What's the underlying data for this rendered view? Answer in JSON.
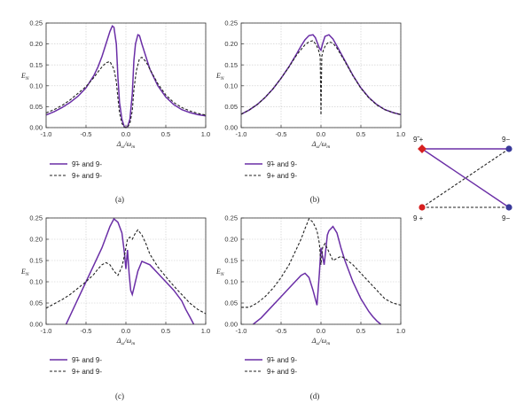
{
  "chart_data": [
    {
      "type": "line",
      "caption": "(a)",
      "xlabel": "Δ_ω/ω_m",
      "ylabel": "E_N",
      "xlim": [
        -1.0,
        1.0
      ],
      "ylim": [
        0.0,
        0.25
      ],
      "xticks": [
        "-1.0",
        "-0.5",
        "0.0",
        "0.5",
        "1.0"
      ],
      "yticks": [
        "0.00",
        "0.05",
        "0.10",
        "0.15",
        "0.20",
        "0.25"
      ],
      "grid": true,
      "legend_position": "bottom",
      "series": [
        {
          "name": "9̃+ and 9-",
          "style": "solid",
          "color": "#6a2ea6",
          "x": [
            -1.0,
            -0.9,
            -0.8,
            -0.7,
            -0.6,
            -0.5,
            -0.4,
            -0.35,
            -0.3,
            -0.25,
            -0.2,
            -0.17,
            -0.15,
            -0.12,
            -0.1,
            -0.08,
            -0.05,
            -0.02,
            0.0,
            0.02,
            0.05,
            0.08,
            0.1,
            0.12,
            0.15,
            0.17,
            0.2,
            0.25,
            0.3,
            0.4,
            0.5,
            0.6,
            0.7,
            0.8,
            0.9,
            1.0
          ],
          "y": [
            0.03,
            0.038,
            0.048,
            0.06,
            0.075,
            0.095,
            0.125,
            0.145,
            0.17,
            0.2,
            0.23,
            0.243,
            0.24,
            0.2,
            0.12,
            0.06,
            0.02,
            0.002,
            0.0,
            0.002,
            0.02,
            0.08,
            0.16,
            0.2,
            0.222,
            0.22,
            0.2,
            0.17,
            0.14,
            0.1,
            0.073,
            0.055,
            0.043,
            0.036,
            0.031,
            0.028
          ]
        },
        {
          "name": "9+ and 9-",
          "style": "dashed",
          "color": "#222222",
          "x": [
            -1.0,
            -0.9,
            -0.8,
            -0.7,
            -0.6,
            -0.5,
            -0.4,
            -0.35,
            -0.3,
            -0.25,
            -0.2,
            -0.15,
            -0.12,
            -0.1,
            -0.08,
            -0.05,
            -0.02,
            0.0,
            0.02,
            0.05,
            0.08,
            0.1,
            0.13,
            0.17,
            0.2,
            0.25,
            0.3,
            0.4,
            0.5,
            0.6,
            0.7,
            0.8,
            0.9,
            1.0
          ],
          "y": [
            0.035,
            0.043,
            0.053,
            0.066,
            0.082,
            0.098,
            0.12,
            0.133,
            0.145,
            0.155,
            0.158,
            0.14,
            0.11,
            0.07,
            0.035,
            0.01,
            0.001,
            0.0,
            0.001,
            0.01,
            0.04,
            0.09,
            0.135,
            0.165,
            0.168,
            0.158,
            0.14,
            0.105,
            0.078,
            0.06,
            0.048,
            0.04,
            0.034,
            0.03
          ]
        }
      ]
    },
    {
      "type": "line",
      "caption": "(b)",
      "xlabel": "Δ_ω/ω_m",
      "ylabel": "E_N",
      "xlim": [
        -1.0,
        1.0
      ],
      "ylim": [
        0.0,
        0.25
      ],
      "xticks": [
        "-1.0",
        "-0.5",
        "0.0",
        "0.5",
        "1.0"
      ],
      "yticks": [
        "0.00",
        "0.05",
        "0.10",
        "0.15",
        "0.20",
        "0.25"
      ],
      "grid": true,
      "legend_position": "bottom",
      "series": [
        {
          "name": "9̃+ and 9-",
          "style": "solid",
          "color": "#6a2ea6",
          "x": [
            -1.0,
            -0.9,
            -0.8,
            -0.7,
            -0.6,
            -0.5,
            -0.4,
            -0.3,
            -0.25,
            -0.2,
            -0.15,
            -0.1,
            -0.07,
            -0.04,
            -0.02,
            0.0,
            0.02,
            0.05,
            0.1,
            0.15,
            0.2,
            0.3,
            0.4,
            0.5,
            0.6,
            0.7,
            0.8,
            0.9,
            1.0
          ],
          "y": [
            0.032,
            0.042,
            0.055,
            0.072,
            0.093,
            0.118,
            0.146,
            0.178,
            0.195,
            0.21,
            0.22,
            0.222,
            0.215,
            0.2,
            0.19,
            0.185,
            0.2,
            0.218,
            0.222,
            0.212,
            0.195,
            0.16,
            0.125,
            0.095,
            0.072,
            0.055,
            0.043,
            0.036,
            0.031
          ]
        },
        {
          "name": "9+ and 9-",
          "style": "dashed",
          "color": "#222222",
          "x": [
            -1.0,
            -0.9,
            -0.8,
            -0.7,
            -0.6,
            -0.5,
            -0.4,
            -0.3,
            -0.2,
            -0.15,
            -0.1,
            -0.06,
            -0.03,
            -0.01,
            0.0,
            0.01,
            0.03,
            0.06,
            0.1,
            0.15,
            0.2,
            0.3,
            0.4,
            0.5,
            0.6,
            0.7,
            0.8,
            0.9,
            1.0
          ],
          "y": [
            0.032,
            0.042,
            0.055,
            0.072,
            0.093,
            0.118,
            0.145,
            0.175,
            0.198,
            0.205,
            0.208,
            0.198,
            0.185,
            0.17,
            0.03,
            0.17,
            0.185,
            0.198,
            0.205,
            0.202,
            0.19,
            0.158,
            0.124,
            0.094,
            0.071,
            0.054,
            0.043,
            0.036,
            0.031
          ]
        }
      ]
    },
    {
      "type": "line",
      "caption": "(c)",
      "xlabel": "Δ_ω/ω_m",
      "ylabel": "E_N",
      "xlim": [
        -1.0,
        1.0
      ],
      "ylim": [
        0.0,
        0.25
      ],
      "xticks": [
        "-1.0",
        "-0.5",
        "0.0",
        "0.5",
        "1.0"
      ],
      "yticks": [
        "0.00",
        "0.05",
        "0.10",
        "0.15",
        "0.20",
        "0.25"
      ],
      "grid": true,
      "legend_position": "bottom",
      "series": [
        {
          "name": "9̃+ and 9-",
          "style": "solid",
          "color": "#6a2ea6",
          "x": [
            -0.75,
            -0.7,
            -0.6,
            -0.5,
            -0.4,
            -0.3,
            -0.25,
            -0.2,
            -0.15,
            -0.1,
            -0.05,
            -0.02,
            0.0,
            0.02,
            0.04,
            0.06,
            0.08,
            0.1,
            0.15,
            0.2,
            0.3,
            0.4,
            0.5,
            0.6,
            0.7,
            0.75,
            0.8,
            0.85
          ],
          "y": [
            0.0,
            0.02,
            0.06,
            0.1,
            0.14,
            0.18,
            0.205,
            0.23,
            0.248,
            0.24,
            0.215,
            0.17,
            0.13,
            0.175,
            0.12,
            0.08,
            0.07,
            0.085,
            0.125,
            0.148,
            0.14,
            0.12,
            0.1,
            0.08,
            0.055,
            0.035,
            0.018,
            0.0
          ]
        },
        {
          "name": "9+ and 9-",
          "style": "dashed",
          "color": "#222222",
          "x": [
            -1.0,
            -0.9,
            -0.8,
            -0.7,
            -0.6,
            -0.5,
            -0.4,
            -0.35,
            -0.3,
            -0.25,
            -0.2,
            -0.15,
            -0.1,
            -0.05,
            -0.02,
            0.0,
            0.02,
            0.05,
            0.08,
            0.12,
            0.15,
            0.2,
            0.25,
            0.3,
            0.4,
            0.5,
            0.6,
            0.7,
            0.8,
            0.9,
            1.0
          ],
          "y": [
            0.038,
            0.048,
            0.058,
            0.07,
            0.085,
            0.1,
            0.118,
            0.13,
            0.14,
            0.145,
            0.14,
            0.125,
            0.115,
            0.135,
            0.16,
            0.18,
            0.2,
            0.205,
            0.2,
            0.215,
            0.222,
            0.21,
            0.19,
            0.165,
            0.135,
            0.112,
            0.09,
            0.07,
            0.05,
            0.035,
            0.025
          ]
        }
      ]
    },
    {
      "type": "line",
      "caption": "(d)",
      "xlabel": "Δ_ω/ω_m",
      "ylabel": "E_N",
      "xlim": [
        -1.0,
        1.0
      ],
      "ylim": [
        0.0,
        0.25
      ],
      "xticks": [
        "-1.0",
        "-0.5",
        "0.0",
        "0.5",
        "1.0"
      ],
      "yticks": [
        "0.00",
        "0.05",
        "0.10",
        "0.15",
        "0.20",
        "0.25"
      ],
      "grid": true,
      "legend_position": "bottom",
      "series": [
        {
          "name": "9̃+ and 9-",
          "style": "solid",
          "color": "#6a2ea6",
          "x": [
            -0.85,
            -0.75,
            -0.65,
            -0.55,
            -0.45,
            -0.35,
            -0.25,
            -0.2,
            -0.15,
            -0.1,
            -0.05,
            -0.02,
            0.0,
            0.02,
            0.04,
            0.06,
            0.08,
            0.1,
            0.15,
            0.2,
            0.25,
            0.3,
            0.4,
            0.5,
            0.6,
            0.65,
            0.7,
            0.75
          ],
          "y": [
            0.0,
            0.015,
            0.035,
            0.055,
            0.075,
            0.095,
            0.115,
            0.12,
            0.11,
            0.08,
            0.045,
            0.12,
            0.18,
            0.16,
            0.14,
            0.175,
            0.21,
            0.22,
            0.23,
            0.215,
            0.18,
            0.15,
            0.1,
            0.06,
            0.03,
            0.018,
            0.008,
            0.0
          ]
        },
        {
          "name": "9+ and 9-",
          "style": "dashed",
          "color": "#222222",
          "x": [
            -1.0,
            -0.9,
            -0.8,
            -0.7,
            -0.6,
            -0.5,
            -0.4,
            -0.35,
            -0.3,
            -0.25,
            -0.2,
            -0.15,
            -0.1,
            -0.05,
            -0.02,
            0.0,
            0.02,
            0.05,
            0.1,
            0.15,
            0.2,
            0.25,
            0.3,
            0.4,
            0.5,
            0.6,
            0.7,
            0.8,
            0.9,
            1.0
          ],
          "y": [
            0.04,
            0.04,
            0.05,
            0.065,
            0.085,
            0.11,
            0.14,
            0.16,
            0.18,
            0.2,
            0.225,
            0.248,
            0.24,
            0.22,
            0.19,
            0.14,
            0.18,
            0.19,
            0.17,
            0.15,
            0.155,
            0.16,
            0.155,
            0.14,
            0.12,
            0.1,
            0.08,
            0.06,
            0.05,
            0.045
          ]
        }
      ]
    }
  ],
  "legend": {
    "solid_label": "9̃+ and 9-",
    "dashed_label": "9+ and 9-"
  },
  "network_diagram": {
    "nodes": {
      "top_left": {
        "label": "9̃ +",
        "color": "#d62020",
        "shape": "diamond"
      },
      "top_right": {
        "label": "9−",
        "color": "#3a3a9a",
        "shape": "circle"
      },
      "bottom_left": {
        "label": "9 +",
        "color": "#d62020",
        "shape": "circle"
      },
      "bottom_right": {
        "label": "9−",
        "color": "#3a3a9a",
        "shape": "circle"
      }
    },
    "edges": [
      {
        "from": "top_left",
        "to": "top_right",
        "style": "solid",
        "color": "#6a2ea6"
      },
      {
        "from": "top_left",
        "to": "bottom_right",
        "style": "solid",
        "color": "#6a2ea6"
      },
      {
        "from": "bottom_left",
        "to": "top_right",
        "style": "dashed",
        "color": "#222222"
      },
      {
        "from": "bottom_left",
        "to": "bottom_right",
        "style": "dashed",
        "color": "#222222"
      }
    ]
  }
}
